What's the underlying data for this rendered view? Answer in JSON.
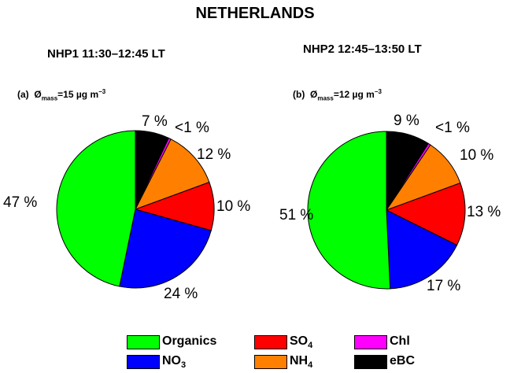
{
  "title": "NETHERLANDS",
  "colors": {
    "Organics": "#00ff00",
    "NO3": "#0000ff",
    "SO4": "#ff0000",
    "NH4": "#ff8000",
    "Chl": "#ff00ff",
    "eBC": "#000000"
  },
  "chart_data": [
    {
      "type": "pie",
      "title": "NHP1 11:30–12:45 LT",
      "panel": "(a)",
      "mass_value": "15",
      "unit": "µg m",
      "unit_exp": "−3",
      "categories": [
        "Organics",
        "NO3",
        "SO4",
        "NH4",
        "Chl",
        "eBC"
      ],
      "values": [
        47,
        24,
        10,
        12,
        0.5,
        7
      ],
      "labels": [
        "47 %",
        "24 %",
        "10 %",
        "12 %",
        "<1 %",
        "7 %"
      ]
    },
    {
      "type": "pie",
      "title": "NHP2 12:45–13:50 LT",
      "panel": "(b)",
      "mass_value": "12",
      "unit": "µg m",
      "unit_exp": "−3",
      "categories": [
        "Organics",
        "NO3",
        "SO4",
        "NH4",
        "Chl",
        "eBC"
      ],
      "values": [
        51,
        17,
        13,
        10,
        0.5,
        9
      ],
      "labels": [
        "51 %",
        "17 %",
        "13 %",
        "10 %",
        "<1 %",
        "9 %"
      ]
    }
  ],
  "legend": [
    {
      "key": "Organics",
      "name": "Organics",
      "sub": ""
    },
    {
      "key": "SO4",
      "name": "SO",
      "sub": "4"
    },
    {
      "key": "Chl",
      "name": "Chl",
      "sub": ""
    },
    {
      "key": "NO3",
      "name": "NO",
      "sub": "3"
    },
    {
      "key": "NH4",
      "name": "NH",
      "sub": "4"
    },
    {
      "key": "eBC",
      "name": "eBC",
      "sub": ""
    }
  ]
}
